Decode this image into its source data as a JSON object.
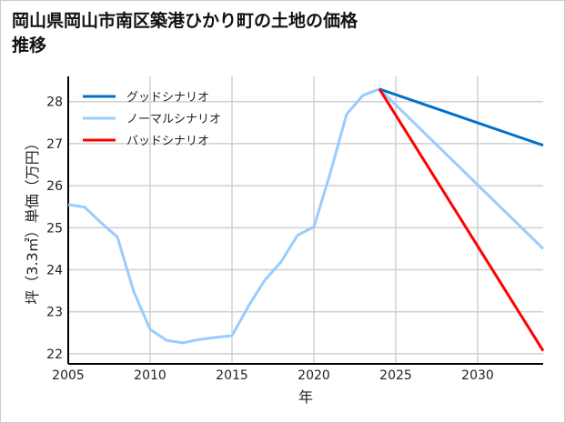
{
  "chart_data": {
    "type": "line",
    "title": "岡山県岡山市南区築港ひかり町の土地の価格推移",
    "xlabel": "年",
    "ylabel": "坪（3.3㎡）単価（万円）",
    "xlim": [
      2005,
      2034
    ],
    "ylim": [
      21.76,
      28.6
    ],
    "xticks": [
      2005,
      2010,
      2015,
      2020,
      2025,
      2030
    ],
    "yticks": [
      22,
      23,
      24,
      25,
      26,
      27,
      28
    ],
    "grid": true,
    "legend_position": "top-left",
    "series": [
      {
        "name": "グッドシナリオ",
        "color": "#0070cc",
        "x": [
          2024,
          2034
        ],
        "y": [
          28.3,
          26.96
        ]
      },
      {
        "name": "ノーマルシナリオ",
        "color": "#99ccff",
        "x": [
          2005,
          2006,
          2007,
          2008,
          2009,
          2010,
          2011,
          2012,
          2013,
          2014,
          2015,
          2016,
          2017,
          2018,
          2019,
          2020,
          2021,
          2022,
          2023,
          2024,
          2034
        ],
        "y": [
          25.55,
          25.49,
          25.12,
          24.78,
          23.48,
          22.58,
          22.32,
          22.26,
          22.34,
          22.39,
          22.43,
          23.13,
          23.75,
          24.19,
          24.82,
          25.02,
          26.3,
          27.7,
          28.15,
          28.3,
          24.5
        ]
      },
      {
        "name": "バッドシナリオ",
        "color": "#ff0000",
        "x": [
          2024,
          2034
        ],
        "y": [
          28.3,
          22.07
        ]
      }
    ]
  }
}
